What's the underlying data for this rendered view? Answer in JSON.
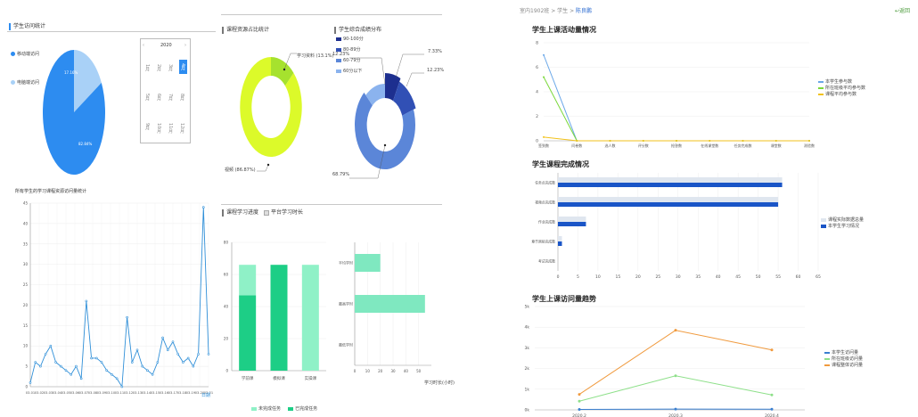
{
  "left_panel": {
    "pie1_title": "学生访问统计",
    "pie1_legend": [
      "移动端访问",
      "电脑端访问"
    ],
    "pie1_labels": [
      "17.16%",
      "82.84%"
    ],
    "calendar_year": "2020",
    "calendar_nav": [
      "‹",
      "›"
    ],
    "calendar_months_row1": [
      "1月",
      "2月",
      "3月",
      "4月"
    ],
    "calendar_months_row2": [
      "5月",
      "6月",
      "7月",
      "8月"
    ],
    "calendar_months_row3": [
      "9月",
      "10月",
      "11月",
      "12月"
    ],
    "line_title": "所有学生的学习课程资源访问量统计",
    "line_xaxis_name": "日期"
  },
  "middle_panel": {
    "donut1_title": "课程资源占比统计",
    "donut1_labels": [
      "学习资料 (13.1%)",
      "视频 (86.87%)"
    ],
    "donut2_title": "学生综合成绩分布",
    "donut2_legend": [
      "90-100分",
      "80-89分",
      "60-79分",
      "60分以下"
    ],
    "donut2_labels": [
      "12.23%",
      "7.33%",
      "12.23%",
      "68.79%"
    ],
    "bar_title": "课程学习进度",
    "bar_title2": "平台学习时长",
    "bar_legend": [
      "未完成任务",
      "已完成任务"
    ],
    "hbar_xaxis_name": "学习时长(小时)"
  },
  "right_panel": {
    "breadcrumb": [
      "室内1902班",
      ">",
      "学生",
      ">"
    ],
    "breadcrumb_current": "陈良鹏",
    "back_label": "返回",
    "chart1_title": "学生上课活动量情况",
    "chart1_legend": [
      "本学生参与数",
      "所在班级平均参与数",
      "课程平均参与数"
    ],
    "chart2_title": "学生课程完成情况",
    "chart2_legend": [
      "课程实际数据总量",
      "本学生学习情况"
    ],
    "chart3_title": "学生上课访问量趋势",
    "chart3_legend": [
      "本学生访问量",
      "所在班级访问量",
      "课程整体访问量"
    ]
  },
  "chart_data": [
    {
      "type": "pie",
      "categories": [
        "移动端访问",
        "电脑端访问"
      ],
      "values": [
        17.16,
        82.84
      ],
      "colors": [
        "#a9d1f7",
        "#2d8cf0"
      ]
    },
    {
      "type": "line",
      "title": "所有学生的学习课程资源访问量统计",
      "xlabel": "日期",
      "ylim": [
        0,
        45
      ],
      "y_ticks": [
        0,
        5,
        10,
        15,
        20,
        25,
        30,
        35,
        40,
        45
      ],
      "x_ticks": [
        "03-01",
        "03-02",
        "03-03",
        "03-04",
        "03-05",
        "03-06",
        "03-07",
        "03-08",
        "03-09",
        "03-10",
        "03-11",
        "03-12",
        "03-13",
        "03-14",
        "03-15",
        "03-16",
        "03-17",
        "03-18",
        "03-19",
        "03-20",
        "03-21"
      ],
      "values": [
        1,
        6,
        5,
        8,
        10,
        6,
        5,
        4,
        3,
        5,
        2,
        21,
        7,
        7,
        6,
        4,
        3,
        2,
        0,
        17,
        6,
        9,
        5,
        4,
        3,
        6,
        12,
        9,
        11,
        8,
        6,
        7,
        5,
        8,
        44,
        8
      ],
      "color": "#2f8fd8"
    },
    {
      "type": "pie",
      "title": "课程资源占比统计",
      "categories": [
        "学习资料",
        "视频"
      ],
      "values": [
        13.1,
        86.87
      ],
      "colors": [
        "#a6e22e",
        "#dcfa2a"
      ]
    },
    {
      "type": "pie",
      "title": "学生综合成绩分布",
      "categories": [
        "90-100分",
        "80-89分",
        "60-79分",
        "60分以下"
      ],
      "values": [
        7.33,
        12.23,
        68.79,
        12.23
      ],
      "colors": [
        "#1d2f8f",
        "#3150b5",
        "#5b86d8",
        "#8bb3ee"
      ]
    },
    {
      "type": "bar",
      "title": "课程学习进度",
      "categories": [
        "学前课",
        "模拟课",
        "实操课"
      ],
      "ylim": [
        0,
        80
      ],
      "y_ticks": [
        0,
        20,
        40,
        60,
        80
      ],
      "series": [
        {
          "name": "已完成任务",
          "values": [
            47,
            66,
            0
          ],
          "color": "#1dce86"
        },
        {
          "name": "未完成任务",
          "values": [
            19,
            0,
            66
          ],
          "color": "#8ff1c7"
        }
      ]
    },
    {
      "type": "bar",
      "orientation": "horizontal",
      "title": "平台学习时长",
      "categories": [
        "平均学时",
        "最高学时",
        "最低学时"
      ],
      "values": [
        20,
        55,
        0
      ],
      "xlim": [
        0,
        60
      ],
      "x_ticks": [
        0,
        10,
        20,
        30,
        40,
        50
      ],
      "color": "#7fe8c0"
    },
    {
      "type": "line",
      "title": "学生上课活动量情况",
      "categories": [
        "签到数",
        "问卷数",
        "选人数",
        "评分数",
        "抢答数",
        "在线课堂数",
        "任务完成数",
        "课堂数",
        "测验数"
      ],
      "ylim": [
        0,
        8
      ],
      "y_ticks": [
        0,
        2,
        4,
        6,
        8
      ],
      "series": [
        {
          "name": "本学生参与数",
          "values": [
            7,
            0,
            0,
            0,
            0,
            0,
            0,
            0,
            0
          ],
          "color": "#6aa7e8"
        },
        {
          "name": "所在班级平均参与数",
          "values": [
            5.2,
            0,
            0,
            0,
            0,
            0,
            0,
            0,
            0
          ],
          "color": "#7ad83a"
        },
        {
          "name": "课程平均参与数",
          "values": [
            0.3,
            0,
            0,
            0,
            0,
            0,
            0,
            0,
            0
          ],
          "color": "#f2c21b"
        }
      ]
    },
    {
      "type": "bar",
      "orientation": "horizontal",
      "title": "学生课程完成情况",
      "categories": [
        "任务点完成数",
        "视频点完成数",
        "作业完成数",
        "章节测验完成数",
        "考试完成数"
      ],
      "xlim": [
        0,
        65
      ],
      "x_ticks": [
        0,
        5,
        10,
        15,
        20,
        25,
        30,
        35,
        40,
        45,
        50,
        55,
        60,
        65
      ],
      "series": [
        {
          "name": "课程实际数据总量",
          "values": [
            56,
            55,
            7,
            1,
            0
          ],
          "color": "#dfe6ef"
        },
        {
          "name": "本学生学习情况",
          "values": [
            56,
            55,
            7,
            1,
            0
          ],
          "color": "#1a55c7"
        }
      ]
    },
    {
      "type": "line",
      "title": "学生上课访问量趋势",
      "categories": [
        "2020.2",
        "2020.3",
        "2020.4"
      ],
      "ylim": [
        0,
        5000
      ],
      "y_ticks": [
        "0k",
        "1k",
        "2k",
        "3k",
        "4k",
        "5k"
      ],
      "series": [
        {
          "name": "本学生访问量",
          "values": [
            20,
            40,
            30
          ],
          "color": "#3a7fd0"
        },
        {
          "name": "所在班级访问量",
          "values": [
            420,
            1650,
            720
          ],
          "color": "#8ee08a"
        },
        {
          "name": "课程整体访问量",
          "values": [
            750,
            3850,
            2900
          ],
          "color": "#f09a3e"
        }
      ]
    }
  ]
}
